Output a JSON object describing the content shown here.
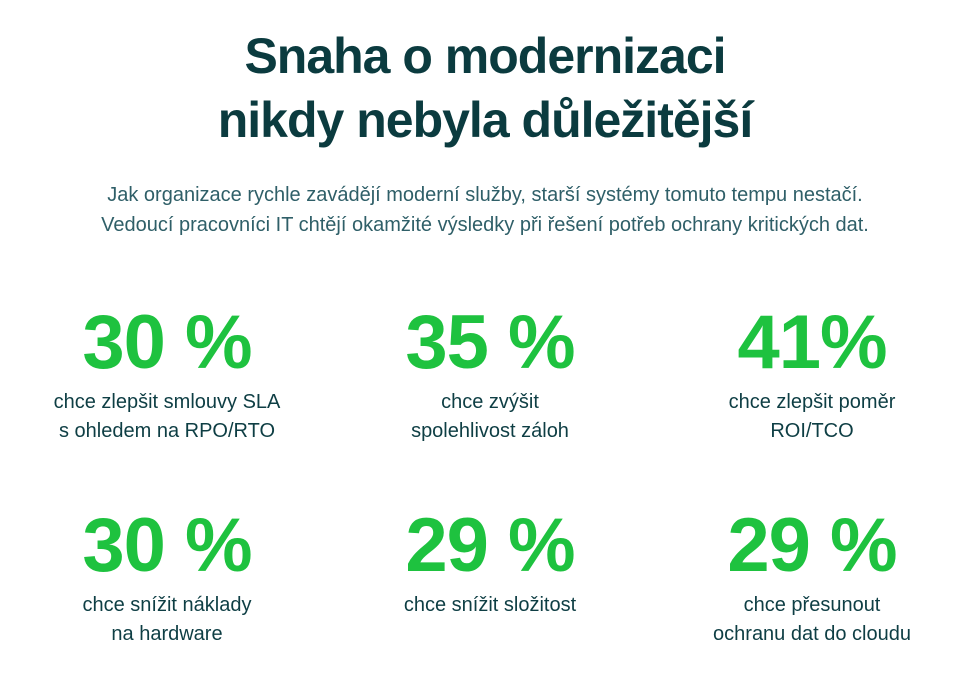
{
  "heading": {
    "line1": "Snaha o modernizaci",
    "line2": "nikdy nebyla důležitější"
  },
  "intro": {
    "line1": "Jak organizace rychle zavádějí moderní služby, starší systémy tomuto tempu nestačí.",
    "line2": "Vedoucí pracovníci IT chtějí okamžité výsledky při řešení potřeb ochrany kritických dat."
  },
  "stats": [
    {
      "value": "30 %",
      "caption": [
        "chce zlepšit smlouvy SLA",
        "s ohledem na RPO/RTO"
      ]
    },
    {
      "value": "35 %",
      "caption": [
        "chce zvýšit",
        "spolehlivost záloh"
      ]
    },
    {
      "value": "41%",
      "caption": [
        "chce zlepšit poměr",
        "ROI/TCO"
      ]
    },
    {
      "value": "30 %",
      "caption": [
        "chce snížit náklady",
        "na hardware"
      ]
    },
    {
      "value": "29 %",
      "caption": [
        "chce snížit složitost"
      ]
    },
    {
      "value": "29 %",
      "caption": [
        "chce přesunout",
        "ochranu dat do cloudu"
      ]
    }
  ],
  "colors": {
    "heading": "#0b3b3f",
    "accent_green": "#1ec23f",
    "body_text": "#0e3e44"
  }
}
